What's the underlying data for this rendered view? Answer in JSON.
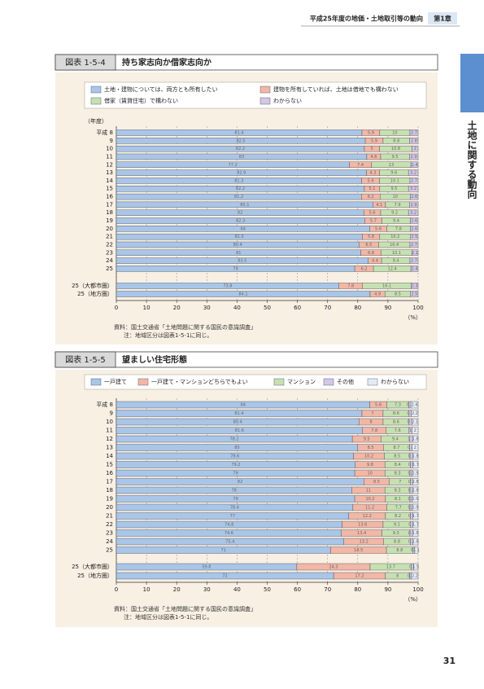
{
  "header": {
    "title": "平成25年度の地価・土地取引等の動向",
    "chapter": "第1章"
  },
  "side_tab": "土地に関する動向",
  "page_number": "31",
  "chart_data": [
    {
      "type": "bar",
      "orientation": "horizontal",
      "stacked": true,
      "figure_label": "図表 1-5-4",
      "title": "持ち家志向か借家志向か",
      "y_label": "（年度）",
      "x_unit": "（%）",
      "categories": [
        "平成 8",
        "9",
        "10",
        "11",
        "12",
        "13",
        "14",
        "15",
        "16",
        "17",
        "18",
        "19",
        "20",
        "21",
        "22",
        "23",
        "24",
        "25",
        "25（大都市圏）",
        "25（地方圏）"
      ],
      "series": [
        {
          "name": "土地・建物については、両方とも所有したい",
          "color": "#a9c6e8",
          "values": [
            81.4,
            82.5,
            82.2,
            83.0,
            77.2,
            82.9,
            81.3,
            82.2,
            81.2,
            85.1,
            82.0,
            82.3,
            84.0,
            81.5,
            80.4,
            81.0,
            83.5,
            79.0,
            73.8,
            84.1
          ]
        },
        {
          "name": "建物を所有していれば、土地は借地でも構わない",
          "color": "#f2b7a6",
          "values": [
            5.9,
            5.9,
            5.0,
            4.6,
            7.4,
            4.3,
            5.9,
            5.1,
            6.2,
            4.1,
            5.6,
            5.7,
            5.6,
            5.8,
            6.5,
            6.8,
            4.4,
            6.2,
            7.8,
            4.9
          ]
        },
        {
          "name": "借家（賃貸住宅）で構わない",
          "color": "#c5e1b1",
          "values": [
            10.0,
            8.8,
            10.8,
            9.5,
            13.0,
            9.6,
            10.1,
            9.5,
            10.0,
            7.9,
            9.2,
            9.4,
            7.8,
            10.2,
            10.4,
            10.1,
            9.4,
            12.4,
            16.1,
            8.5
          ]
        },
        {
          "name": "わからない",
          "color": "#d3c6e6",
          "values": [
            2.7,
            2.8,
            2.0,
            2.9,
            2.4,
            3.2,
            2.7,
            3.2,
            2.6,
            2.9,
            3.2,
            2.6,
            2.6,
            2.5,
            2.7,
            2.1,
            2.7,
            2.4,
            2.3,
            2.5
          ]
        }
      ],
      "xlim": [
        0,
        100
      ],
      "xticks": [
        0,
        10,
        20,
        30,
        40,
        50,
        60,
        70,
        80,
        90,
        100
      ],
      "grid": true,
      "notes": [
        "資料：国土交通省「土地問題に関する国民の意識調査」",
        "注：地域区分は図表1-5-1に同じ。"
      ]
    },
    {
      "type": "bar",
      "orientation": "horizontal",
      "stacked": true,
      "figure_label": "図表 1-5-5",
      "title": "望ましい住宅形態",
      "x_unit": "（%）",
      "categories": [
        "平成 8",
        "9",
        "10",
        "11",
        "12",
        "13",
        "14",
        "15",
        "16",
        "17",
        "18",
        "19",
        "20",
        "21",
        "22",
        "23",
        "24",
        "25",
        "25（大都市圏）",
        "25（地方圏）"
      ],
      "series": [
        {
          "name": "一戸建て",
          "color": "#a9c6e8",
          "values": [
            84.0,
            81.4,
            80.4,
            81.6,
            78.2,
            80.0,
            78.6,
            79.2,
            79.0,
            82.0,
            78.0,
            79.0,
            78.4,
            77.0,
            74.8,
            74.6,
            75.4,
            71.0,
            59.8,
            72.0
          ]
        },
        {
          "name": "一戸建て・マンションどちらでもよい",
          "color": "#f2b7a6",
          "values": [
            5.6,
            7.0,
            8.0,
            7.8,
            9.5,
            8.5,
            10.2,
            9.8,
            10.0,
            8.5,
            11.0,
            10.2,
            11.2,
            12.2,
            13.6,
            13.4,
            13.2,
            18.5,
            24.3,
            17.2
          ]
        },
        {
          "name": "マンション",
          "color": "#c5e1b1",
          "values": [
            7.3,
            8.6,
            8.6,
            7.6,
            9.4,
            8.7,
            8.5,
            8.4,
            8.3,
            7.0,
            8.3,
            8.1,
            7.7,
            8.2,
            9.1,
            9.3,
            8.8,
            8.8,
            13.7,
            8.0
          ]
        },
        {
          "name": "その他",
          "color": "#d3c6e6",
          "values": [
            0.7,
            0.8,
            0.9,
            1.0,
            1.1,
            0.8,
            0.9,
            0.9,
            0.8,
            0.7,
            0.9,
            0.8,
            0.8,
            0.9,
            0.8,
            0.9,
            0.8,
            0.6,
            0.7,
            0.6
          ]
        },
        {
          "name": "わからない",
          "color": "#e2ebf6",
          "values": [
            2.4,
            2.2,
            2.1,
            2.0,
            1.8,
            2.0,
            1.8,
            1.7,
            1.9,
            1.8,
            1.8,
            1.9,
            1.9,
            1.7,
            1.7,
            1.8,
            1.8,
            1.1,
            1.5,
            2.2
          ]
        }
      ],
      "xlim": [
        0,
        100
      ],
      "xticks": [
        0,
        10,
        20,
        30,
        40,
        50,
        60,
        70,
        80,
        90,
        100
      ],
      "grid": true,
      "notes": [
        "資料：国土交通省「土地問題に関する国民の意識調査」",
        "注：地域区分は図表1-5-1に同じ。"
      ]
    }
  ]
}
